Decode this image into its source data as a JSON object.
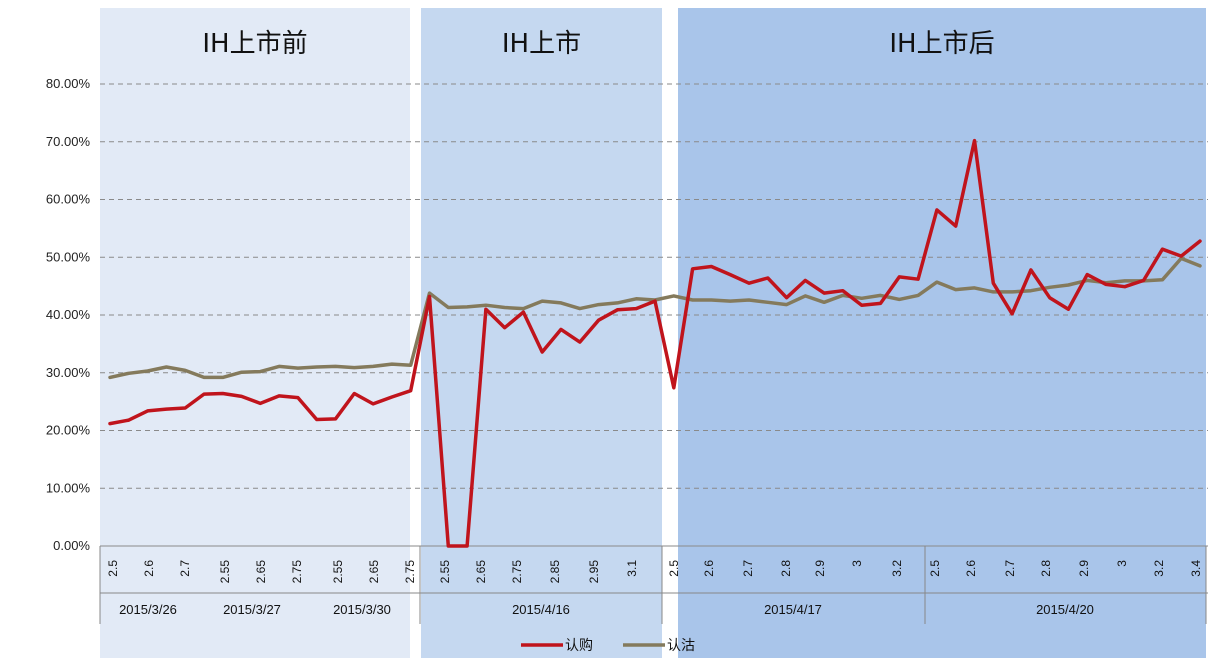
{
  "chart_data": {
    "type": "line",
    "regions": [
      {
        "label": "IH上市前",
        "fill": "#e2eaf6"
      },
      {
        "label": "IH上市",
        "fill": "#c5d8f0"
      },
      {
        "label": "IH上市后",
        "fill": "#a9c5ea"
      }
    ],
    "y_ticks": [
      "0.00%",
      "10.00%",
      "20.00%",
      "30.00%",
      "40.00%",
      "50.00%",
      "60.00%",
      "70.00%",
      "80.00%"
    ],
    "ylim": [
      0,
      80
    ],
    "x_labels": [
      "2.5",
      "2.6",
      "2.7",
      "2.55",
      "2.65",
      "2.75",
      "2.55",
      "2.65",
      "2.75",
      "2.55",
      "2.65",
      "2.75",
      "2.85",
      "2.95",
      "3.1",
      "2.5",
      "2.6",
      "2.7",
      "2.8",
      "2.9",
      "3",
      "3.2",
      "2.5",
      "2.6",
      "2.7",
      "2.8",
      "2.9",
      "3",
      "3.2",
      "3.4"
    ],
    "date_groups": [
      "2015/3/26",
      "2015/3/27",
      "2015/3/30",
      "2015/4/16",
      "2015/4/17",
      "2015/4/20"
    ],
    "grid": true,
    "legend_position": "bottom",
    "series": [
      {
        "name": "认购",
        "color": "#c0141c",
        "values": [
          21.2,
          21.8,
          23.4,
          23.7,
          23.9,
          26.3,
          26.4,
          25.9,
          24.7,
          26.0,
          25.7,
          21.9,
          22.0,
          26.4,
          24.6,
          25.8,
          26.9,
          43.2,
          0.0,
          0.0,
          41.0,
          37.8,
          40.5,
          33.6,
          37.5,
          35.3,
          39.1,
          40.9,
          41.1,
          42.4,
          27.4,
          48.0,
          48.4,
          47.0,
          45.5,
          46.4,
          43.0,
          46.0,
          43.8,
          44.2,
          41.7,
          42.0,
          46.6,
          46.2,
          58.2,
          55.4,
          70.2,
          45.5,
          40.2,
          47.8,
          43.0,
          41.0,
          47.0,
          45.3,
          44.9,
          46.0,
          51.4,
          50.2,
          52.8
        ]
      },
      {
        "name": "认沽",
        "color": "#847a5c",
        "values": [
          29.2,
          29.9,
          30.3,
          31.0,
          30.4,
          29.2,
          29.2,
          30.1,
          30.2,
          31.1,
          30.8,
          31.0,
          31.1,
          30.9,
          31.1,
          31.5,
          31.3,
          43.8,
          41.3,
          41.4,
          41.7,
          41.3,
          41.1,
          42.4,
          42.1,
          41.1,
          41.8,
          42.1,
          42.8,
          42.6,
          43.3,
          42.6,
          42.6,
          42.4,
          42.6,
          42.2,
          41.8,
          43.3,
          42.2,
          43.4,
          42.9,
          43.4,
          42.7,
          43.4,
          45.7,
          44.4,
          44.7,
          44.0,
          44.0,
          44.2,
          44.8,
          45.2,
          46.0,
          45.6,
          45.9,
          45.9,
          46.1,
          49.8,
          48.5
        ]
      }
    ]
  }
}
